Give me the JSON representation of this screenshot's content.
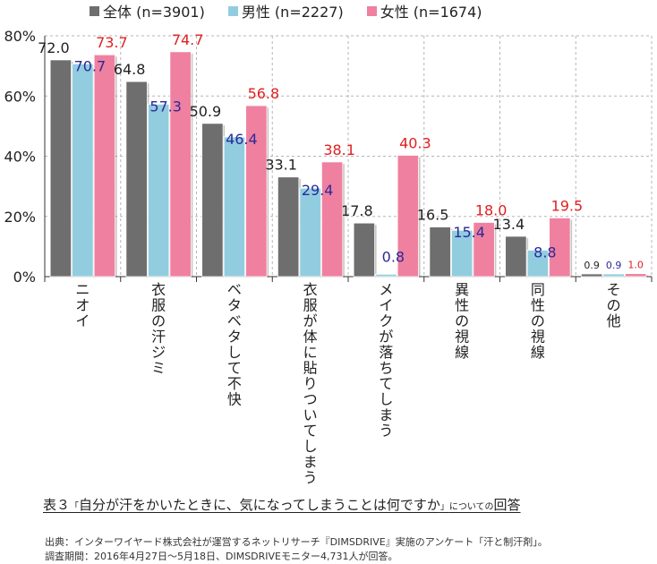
{
  "legend": {
    "all": "全体 (n=3901)",
    "male": "男性 (n=2227)",
    "female": "女性 (n=1674)"
  },
  "colors": {
    "all": "#6e6e6e",
    "male": "#92cddf",
    "female": "#f0809f",
    "label_all": "#222222",
    "label_male": "#2a2a9a",
    "label_female": "#e02020"
  },
  "caption": {
    "lead": "表３",
    "bracket_open": "「",
    "question": "自分が汗をかいたときに、気になってしまうことは何ですか",
    "bracket_close": "」",
    "suffix_small": "についての",
    "suffix": "回答"
  },
  "source": {
    "line1": "出典：インターワイヤード株式会社が運営するネットリサーチ『DIMSDRIVE』実施のアンケート「汗と制汗剤」。",
    "line2": "調査期間：2016年4月27日～5月18日、DIMSDRIVEモニター4,731人が回答。"
  },
  "chart_data": {
    "type": "bar",
    "categories": [
      "ニオイ",
      "衣服の汗ジミ",
      "ベタベタして不快",
      "衣服が体に貼りついてしまう",
      "メイクが落ちてしまう",
      "異性の視線",
      "同性の視線",
      "その他"
    ],
    "series": [
      {
        "name": "全体 (n=3901)",
        "key": "all",
        "values": [
          72.0,
          64.8,
          50.9,
          33.1,
          17.8,
          16.5,
          13.4,
          0.9
        ]
      },
      {
        "name": "男性 (n=2227)",
        "key": "male",
        "values": [
          70.7,
          57.3,
          46.4,
          29.4,
          0.8,
          15.4,
          8.8,
          0.9
        ]
      },
      {
        "name": "女性 (n=1674)",
        "key": "female",
        "values": [
          73.7,
          74.7,
          56.8,
          38.1,
          40.3,
          18.0,
          19.5,
          1.0
        ]
      }
    ],
    "y_ticks": [
      "0%",
      "20%",
      "40%",
      "60%",
      "80%"
    ],
    "ylim": [
      0,
      80
    ],
    "grid": true,
    "legend_position": "top"
  }
}
